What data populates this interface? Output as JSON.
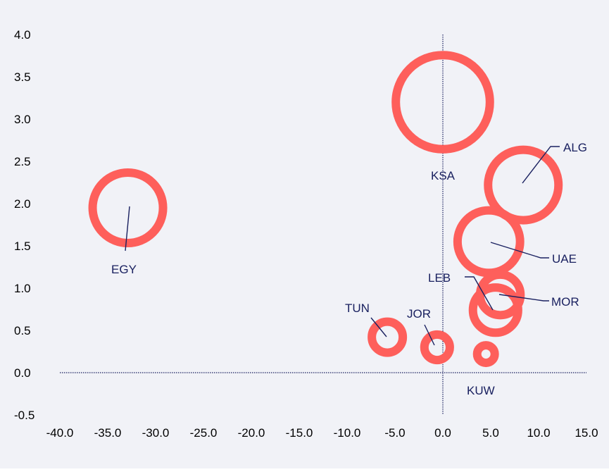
{
  "chart_data": {
    "type": "scatter",
    "title": "",
    "xlabel": "",
    "ylabel": "",
    "xlim": [
      -40,
      15
    ],
    "ylim": [
      -0.5,
      4.0
    ],
    "x_ticks": [
      "-40.0",
      "-35.0",
      "-30.0",
      "-25.0",
      "-20.0",
      "-15.0",
      "-10.0",
      "-5.0",
      "0.0",
      "5.0",
      "10.0",
      "15.0"
    ],
    "y_ticks": [
      "-0.5",
      "0.0",
      "0.5",
      "1.0",
      "1.5",
      "2.0",
      "2.5",
      "3.0",
      "3.5",
      "4.0"
    ],
    "bubble_color": "#fe5f5b",
    "label_color": "#1a2160",
    "axis_color": "#1a2160",
    "background": "#f1f2f7",
    "points": [
      {
        "label": "EGY",
        "x": -32.9,
        "y": 1.95,
        "size": 1.0
      },
      {
        "label": "KSA",
        "x": 0.0,
        "y": 3.2,
        "size": 1.3
      },
      {
        "label": "ALG",
        "x": 8.4,
        "y": 2.22,
        "size": 1.0
      },
      {
        "label": "UAE",
        "x": 4.8,
        "y": 1.55,
        "size": 0.9
      },
      {
        "label": "LEB",
        "x": 5.5,
        "y": 0.74,
        "size": 0.68
      },
      {
        "label": "MOR",
        "x": 6.0,
        "y": 0.92,
        "size": 0.62
      },
      {
        "label": "TUN",
        "x": -5.8,
        "y": 0.42,
        "size": 0.5
      },
      {
        "label": "JOR",
        "x": -0.6,
        "y": 0.3,
        "size": 0.43
      },
      {
        "label": "KUW",
        "x": 4.5,
        "y": 0.22,
        "size": 0.33
      }
    ]
  }
}
